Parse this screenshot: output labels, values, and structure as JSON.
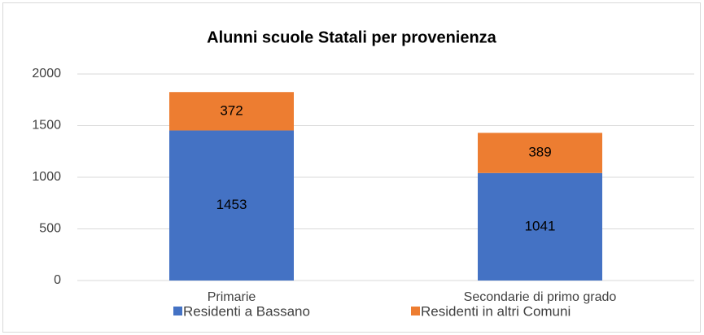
{
  "chart_data": {
    "type": "stacked_bar",
    "title": "Alunni scuole Statali per provenienza",
    "categories": [
      "Primarie",
      "Secondarie di primo grado"
    ],
    "series": [
      {
        "name": "Residenti a Bassano",
        "color": "#4472c4",
        "values": [
          1453,
          1041
        ]
      },
      {
        "name": "Residenti in altri Comuni",
        "color": "#ed7d31",
        "values": [
          372,
          389
        ]
      }
    ],
    "ylim": [
      0,
      2000
    ],
    "yticks": [
      0,
      500,
      1000,
      1500,
      2000
    ],
    "grid": true,
    "legend": "bottom"
  }
}
